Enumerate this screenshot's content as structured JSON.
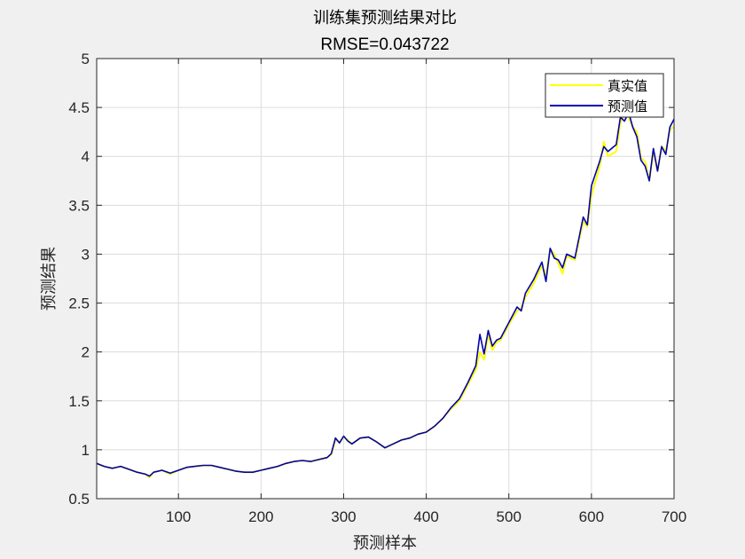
{
  "chart_data": {
    "type": "line",
    "title": "训练集预测结果对比",
    "subtitle": "RMSE=0.043722",
    "xlabel": "预测样本",
    "ylabel": "预测结果",
    "xlim": [
      1,
      700
    ],
    "ylim": [
      0.5,
      5
    ],
    "xticks": [
      "100",
      "200",
      "300",
      "400",
      "500",
      "600",
      "700"
    ],
    "yticks": [
      "0.5",
      "1",
      "1.5",
      "2",
      "2.5",
      "3",
      "3.5",
      "4",
      "4.5",
      "5"
    ],
    "grid": true,
    "legend_position": "top-right",
    "series": [
      {
        "name": "真实值",
        "color": "#ffff00",
        "x": [
          1,
          10,
          20,
          30,
          40,
          50,
          60,
          65,
          70,
          80,
          90,
          100,
          110,
          120,
          130,
          140,
          150,
          160,
          170,
          180,
          190,
          200,
          210,
          220,
          230,
          240,
          250,
          260,
          270,
          280,
          285,
          290,
          295,
          300,
          305,
          310,
          320,
          330,
          340,
          350,
          360,
          370,
          380,
          390,
          400,
          410,
          420,
          430,
          440,
          450,
          460,
          465,
          470,
          475,
          480,
          485,
          490,
          500,
          510,
          515,
          520,
          530,
          540,
          545,
          550,
          555,
          560,
          565,
          570,
          580,
          590,
          595,
          600,
          610,
          615,
          620,
          630,
          635,
          640,
          645,
          650,
          655,
          660,
          665,
          670,
          675,
          680,
          685,
          690,
          695,
          700
        ],
        "values": [
          0.86,
          0.83,
          0.81,
          0.83,
          0.8,
          0.77,
          0.75,
          0.72,
          0.77,
          0.79,
          0.75,
          0.79,
          0.82,
          0.83,
          0.84,
          0.84,
          0.82,
          0.8,
          0.78,
          0.77,
          0.77,
          0.79,
          0.81,
          0.83,
          0.86,
          0.88,
          0.89,
          0.88,
          0.9,
          0.92,
          0.95,
          1.1,
          1.08,
          1.13,
          1.1,
          1.06,
          1.12,
          1.13,
          1.08,
          1.02,
          1.06,
          1.1,
          1.12,
          1.16,
          1.18,
          1.24,
          1.32,
          1.42,
          1.5,
          1.66,
          1.82,
          2.0,
          1.92,
          2.18,
          2.02,
          2.1,
          2.12,
          2.28,
          2.42,
          2.45,
          2.56,
          2.7,
          2.88,
          2.78,
          3.05,
          3.0,
          2.9,
          2.8,
          2.98,
          2.94,
          3.34,
          3.28,
          3.6,
          3.9,
          4.15,
          4.0,
          4.05,
          4.35,
          4.42,
          4.4,
          4.3,
          4.25,
          3.98,
          3.95,
          3.75,
          4.05,
          3.85,
          4.1,
          4.05,
          4.28,
          4.3
        ]
      },
      {
        "name": "预测值",
        "color": "#0000b0",
        "x": [
          1,
          10,
          20,
          30,
          40,
          50,
          60,
          65,
          70,
          80,
          90,
          100,
          110,
          120,
          130,
          140,
          150,
          160,
          170,
          180,
          190,
          200,
          210,
          220,
          230,
          240,
          250,
          260,
          270,
          280,
          285,
          290,
          295,
          300,
          305,
          310,
          320,
          330,
          340,
          350,
          360,
          370,
          380,
          390,
          400,
          410,
          420,
          430,
          440,
          450,
          460,
          465,
          470,
          475,
          480,
          485,
          490,
          500,
          510,
          515,
          520,
          530,
          540,
          545,
          550,
          555,
          560,
          565,
          570,
          580,
          590,
          595,
          600,
          610,
          615,
          620,
          630,
          635,
          640,
          645,
          650,
          655,
          660,
          665,
          670,
          675,
          680,
          685,
          690,
          695,
          700
        ],
        "values": [
          0.86,
          0.83,
          0.81,
          0.83,
          0.8,
          0.77,
          0.75,
          0.73,
          0.77,
          0.79,
          0.76,
          0.79,
          0.82,
          0.83,
          0.84,
          0.84,
          0.82,
          0.8,
          0.78,
          0.77,
          0.77,
          0.79,
          0.81,
          0.83,
          0.86,
          0.88,
          0.89,
          0.88,
          0.9,
          0.92,
          0.96,
          1.12,
          1.07,
          1.14,
          1.09,
          1.06,
          1.12,
          1.13,
          1.08,
          1.02,
          1.06,
          1.1,
          1.12,
          1.16,
          1.18,
          1.24,
          1.32,
          1.43,
          1.52,
          1.68,
          1.86,
          2.18,
          1.98,
          2.22,
          2.06,
          2.12,
          2.14,
          2.3,
          2.46,
          2.42,
          2.6,
          2.74,
          2.92,
          2.72,
          3.06,
          2.96,
          2.94,
          2.86,
          3.0,
          2.96,
          3.38,
          3.3,
          3.7,
          3.95,
          4.1,
          4.05,
          4.12,
          4.4,
          4.36,
          4.45,
          4.3,
          4.2,
          3.96,
          3.9,
          3.75,
          4.08,
          3.85,
          4.1,
          4.02,
          4.3,
          4.38
        ]
      }
    ]
  }
}
